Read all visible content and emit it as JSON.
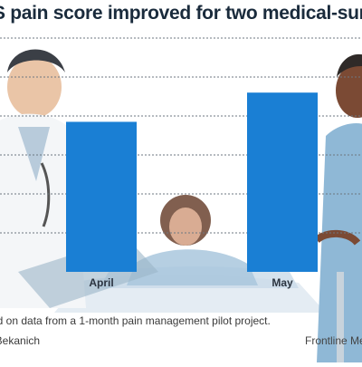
{
  "title": "S pain score improved for two medical-surgical unit",
  "chart_data": {
    "type": "bar",
    "categories": [
      "April",
      "May"
    ],
    "values": [
      77,
      92
    ],
    "ylim": [
      0,
      120
    ],
    "grid": true,
    "gridlines": [
      20,
      40,
      60,
      80,
      100,
      120
    ],
    "bar_color": "#1a7fd4",
    "title": "",
    "xlabel": "",
    "ylabel": ""
  },
  "footnote": "ed on data from a 1-month pain management pilot project.",
  "credit_left": ". Bekanich",
  "credit_right": "Frontline Me"
}
